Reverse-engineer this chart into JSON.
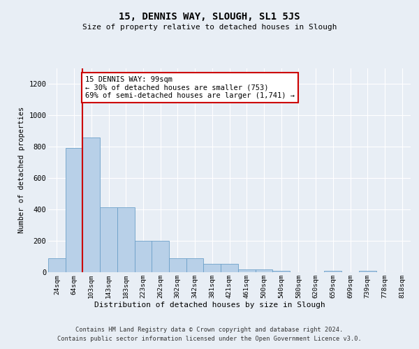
{
  "title": "15, DENNIS WAY, SLOUGH, SL1 5JS",
  "subtitle": "Size of property relative to detached houses in Slough",
  "xlabel": "Distribution of detached houses by size in Slough",
  "ylabel": "Number of detached properties",
  "bar_labels": [
    "24sqm",
    "64sqm",
    "103sqm",
    "143sqm",
    "183sqm",
    "223sqm",
    "262sqm",
    "302sqm",
    "342sqm",
    "381sqm",
    "421sqm",
    "461sqm",
    "500sqm",
    "540sqm",
    "580sqm",
    "620sqm",
    "659sqm",
    "699sqm",
    "739sqm",
    "778sqm",
    "818sqm"
  ],
  "bar_values": [
    90,
    790,
    860,
    415,
    415,
    200,
    200,
    90,
    90,
    55,
    55,
    20,
    20,
    10,
    0,
    0,
    10,
    0,
    10,
    0,
    0
  ],
  "bar_color": "#b8d0e8",
  "bar_edgecolor": "#6ca0c8",
  "vline_x": 1.5,
  "vline_color": "#cc0000",
  "annotation_text": "15 DENNIS WAY: 99sqm\n← 30% of detached houses are smaller (753)\n69% of semi-detached houses are larger (1,741) →",
  "annotation_box_facecolor": "#ffffff",
  "annotation_box_edgecolor": "#cc0000",
  "ylim": [
    0,
    1300
  ],
  "yticks": [
    0,
    200,
    400,
    600,
    800,
    1000,
    1200
  ],
  "footer_line1": "Contains HM Land Registry data © Crown copyright and database right 2024.",
  "footer_line2": "Contains public sector information licensed under the Open Government Licence v3.0.",
  "bg_color": "#e8eef5",
  "grid_color": "#ffffff"
}
